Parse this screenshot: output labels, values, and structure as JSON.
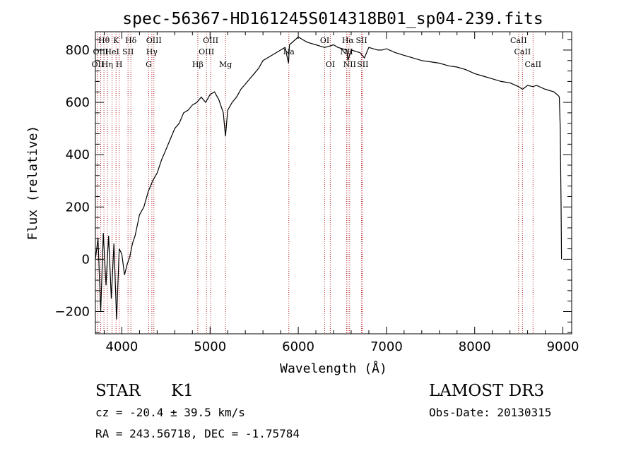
{
  "chart_data": {
    "type": "line",
    "title": "spec-56367-HD161245S014318B01_sp04-239.fits",
    "xlabel": "Wavelength (Å)",
    "ylabel": "Flux (relative)",
    "xlim": [
      3700,
      9100
    ],
    "ylim": [
      -285,
      870
    ],
    "xticks": [
      4000,
      5000,
      6000,
      7000,
      8000,
      9000
    ],
    "yticks": [
      -200,
      0,
      200,
      400,
      600,
      800
    ],
    "series": [
      {
        "name": "flux",
        "x": [
          3700,
          3730,
          3760,
          3790,
          3820,
          3850,
          3880,
          3910,
          3940,
          3970,
          4000,
          4030,
          4060,
          4090,
          4120,
          4150,
          4200,
          4250,
          4300,
          4350,
          4400,
          4450,
          4500,
          4550,
          4600,
          4650,
          4700,
          4750,
          4800,
          4850,
          4900,
          4950,
          5000,
          5050,
          5100,
          5150,
          5175,
          5200,
          5250,
          5300,
          5350,
          5400,
          5450,
          5500,
          5550,
          5600,
          5650,
          5700,
          5750,
          5800,
          5850,
          5890,
          5900,
          5950,
          6000,
          6050,
          6100,
          6150,
          6200,
          6250,
          6300,
          6350,
          6400,
          6450,
          6500,
          6550,
          6563,
          6600,
          6650,
          6700,
          6750,
          6800,
          6850,
          6900,
          6950,
          7000,
          7100,
          7200,
          7300,
          7400,
          7500,
          7600,
          7700,
          7800,
          7900,
          8000,
          8100,
          8200,
          8300,
          8400,
          8498,
          8542,
          8600,
          8662,
          8700,
          8800,
          8900,
          8950,
          8960,
          8970,
          8980,
          8985
        ],
        "values": [
          0,
          80,
          -200,
          100,
          -100,
          90,
          -150,
          60,
          -230,
          40,
          20,
          -60,
          -20,
          10,
          60,
          90,
          170,
          200,
          260,
          300,
          330,
          380,
          420,
          460,
          500,
          520,
          560,
          570,
          590,
          600,
          620,
          600,
          630,
          640,
          610,
          560,
          470,
          570,
          600,
          620,
          650,
          670,
          690,
          710,
          730,
          760,
          770,
          780,
          790,
          800,
          810,
          750,
          820,
          835,
          850,
          840,
          830,
          825,
          820,
          815,
          810,
          815,
          820,
          810,
          805,
          800,
          760,
          800,
          795,
          790,
          770,
          810,
          805,
          800,
          800,
          805,
          790,
          780,
          770,
          760,
          755,
          750,
          740,
          735,
          725,
          710,
          700,
          690,
          680,
          675,
          660,
          650,
          665,
          660,
          665,
          650,
          640,
          625,
          620,
          500,
          200,
          0
        ]
      }
    ],
    "spectral_lines": [
      {
        "label": "OII",
        "wavelength": 3727,
        "row": 2
      },
      {
        "label": "Hθ",
        "wavelength": 3797,
        "row": 0
      },
      {
        "label": "OIII",
        "wavelength": 3760,
        "row": 1
      },
      {
        "label": "Hη",
        "wavelength": 3835,
        "row": 2
      },
      {
        "label": "HeI",
        "wavelength": 3889,
        "row": 1
      },
      {
        "label": "K",
        "wavelength": 3934,
        "row": 0
      },
      {
        "label": "SII",
        "wavelength": 4070,
        "row": 1
      },
      {
        "label": "H",
        "wavelength": 3969,
        "row": 2
      },
      {
        "label": "Hδ",
        "wavelength": 4102,
        "row": 0
      },
      {
        "label": "OIII",
        "wavelength": 4363,
        "row": 0
      },
      {
        "label": "Hγ",
        "wavelength": 4340,
        "row": 1
      },
      {
        "label": "G",
        "wavelength": 4305,
        "row": 2
      },
      {
        "label": "Hβ",
        "wavelength": 4861,
        "row": 2
      },
      {
        "label": "OIII",
        "wavelength": 5007,
        "row": 0
      },
      {
        "label": "OIII",
        "wavelength": 4959,
        "row": 1
      },
      {
        "label": "Mg",
        "wavelength": 5175,
        "row": 2
      },
      {
        "label": "Na",
        "wavelength": 5893,
        "row": 1
      },
      {
        "label": "OI",
        "wavelength": 6300,
        "row": 0
      },
      {
        "label": "OI",
        "wavelength": 6363,
        "row": 2
      },
      {
        "label": "NII",
        "wavelength": 6548,
        "row": 1
      },
      {
        "label": "Hα",
        "wavelength": 6563,
        "row": 0
      },
      {
        "label": "NII",
        "wavelength": 6583,
        "row": 2
      },
      {
        "label": "SII",
        "wavelength": 6717,
        "row": 0
      },
      {
        "label": "SII",
        "wavelength": 6731,
        "row": 2
      },
      {
        "label": "CaII",
        "wavelength": 8498,
        "row": 0
      },
      {
        "label": "CaII",
        "wavelength": 8542,
        "row": 1
      },
      {
        "label": "CaII",
        "wavelength": 8662,
        "row": 2
      }
    ]
  },
  "info": {
    "class": "STAR",
    "subclass": "K1",
    "survey": "LAMOST DR3",
    "cz": "cz = -20.4 ± 39.5 km/s",
    "obs_date": "Obs-Date: 20130315",
    "coords": "RA = 243.56718, DEC =  -1.75784"
  }
}
